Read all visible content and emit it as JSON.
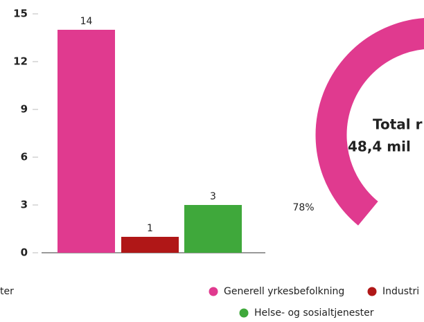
{
  "chart_data": [
    {
      "type": "bar",
      "categories": [
        null,
        null,
        null
      ],
      "values": [
        14,
        1,
        3
      ],
      "colors": [
        "#e03a8f",
        "#b01717",
        "#3fa83b"
      ],
      "ylim": [
        0,
        15
      ],
      "yticks": [
        0,
        3,
        6,
        9,
        12,
        15
      ],
      "legend_fragment": "ter"
    },
    {
      "type": "pie",
      "center_text": [
        "Total r",
        "48,4 mil"
      ],
      "values": [
        78
      ],
      "value_labels": [
        "78%"
      ],
      "colors": [
        "#e03a8f",
        "#b01717",
        "#3fa83b"
      ],
      "legend": [
        "Generell yrkesbefolkning",
        "Industri",
        "Helse- og sosialtjenester"
      ]
    }
  ]
}
